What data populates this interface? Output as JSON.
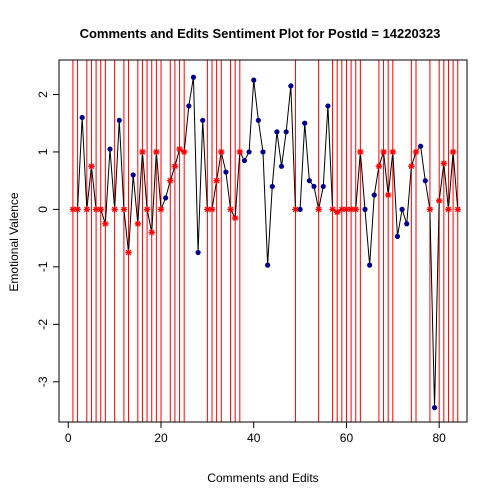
{
  "chart_data": {
    "type": "line",
    "title": "Comments and Edits Sentiment Plot for PostId =  14220323",
    "xlabel": "Comments and Edits",
    "ylabel": "Emotional Valence",
    "xlim": [
      -2,
      86
    ],
    "ylim": [
      -3.7,
      2.6
    ],
    "x_ticks": [
      0,
      20,
      40,
      60,
      80
    ],
    "x_tick_labels": [
      "0",
      "20",
      "40",
      "60",
      "80"
    ],
    "y_ticks": [
      -3,
      -2,
      -1,
      0,
      1,
      2
    ],
    "y_tick_labels": [
      "-3",
      "-2",
      "-1",
      "0",
      "1",
      "2"
    ],
    "grid": false,
    "legend": "none",
    "colors": {
      "comment_point": "#00008b",
      "edit_point": "#ff0000",
      "edit_line": "#ff0000",
      "series_line": "#000000",
      "axis": "#000000"
    },
    "series": [
      {
        "values": [
          {
            "x": 1,
            "y": 0,
            "kind": "edit"
          },
          {
            "x": 2,
            "y": 0,
            "kind": "edit"
          },
          {
            "x": 3,
            "y": 1.6,
            "kind": "comment"
          },
          {
            "x": 4,
            "y": 0,
            "kind": "edit"
          },
          {
            "x": 5,
            "y": 0.75,
            "kind": "edit"
          },
          {
            "x": 6,
            "y": 0,
            "kind": "edit"
          },
          {
            "x": 7,
            "y": 0,
            "kind": "edit"
          },
          {
            "x": 8,
            "y": -0.25,
            "kind": "edit"
          },
          {
            "x": 9,
            "y": 1.05,
            "kind": "comment"
          },
          {
            "x": 10,
            "y": 0,
            "kind": "edit"
          },
          {
            "x": 11,
            "y": 1.55,
            "kind": "comment"
          },
          {
            "x": 12,
            "y": 0,
            "kind": "edit"
          },
          {
            "x": 13,
            "y": -0.75,
            "kind": "edit"
          },
          {
            "x": 14,
            "y": 0.6,
            "kind": "comment"
          },
          {
            "x": 15,
            "y": -0.25,
            "kind": "edit"
          },
          {
            "x": 16,
            "y": 1.0,
            "kind": "edit"
          },
          {
            "x": 17,
            "y": 0,
            "kind": "edit"
          },
          {
            "x": 18,
            "y": -0.4,
            "kind": "edit"
          },
          {
            "x": 19,
            "y": 1.0,
            "kind": "edit"
          },
          {
            "x": 20,
            "y": 0,
            "kind": "edit"
          },
          {
            "x": 21,
            "y": 0.2,
            "kind": "comment"
          },
          {
            "x": 22,
            "y": 0.5,
            "kind": "edit"
          },
          {
            "x": 23,
            "y": 0.75,
            "kind": "edit"
          },
          {
            "x": 24,
            "y": 1.05,
            "kind": "edit"
          },
          {
            "x": 25,
            "y": 1.0,
            "kind": "edit"
          },
          {
            "x": 26,
            "y": 1.8,
            "kind": "comment"
          },
          {
            "x": 27,
            "y": 2.3,
            "kind": "comment"
          },
          {
            "x": 28,
            "y": -0.75,
            "kind": "comment"
          },
          {
            "x": 29,
            "y": 1.55,
            "kind": "comment"
          },
          {
            "x": 30,
            "y": 0,
            "kind": "edit"
          },
          {
            "x": 31,
            "y": 0,
            "kind": "edit"
          },
          {
            "x": 32,
            "y": 0.5,
            "kind": "edit"
          },
          {
            "x": 33,
            "y": 1.0,
            "kind": "edit"
          },
          {
            "x": 34,
            "y": 0.65,
            "kind": "comment"
          },
          {
            "x": 35,
            "y": 0,
            "kind": "edit"
          },
          {
            "x": 36,
            "y": -0.15,
            "kind": "edit"
          },
          {
            "x": 37,
            "y": 1.0,
            "kind": "edit"
          },
          {
            "x": 38,
            "y": 0.85,
            "kind": "comment"
          },
          {
            "x": 39,
            "y": 1.0,
            "kind": "comment"
          },
          {
            "x": 40,
            "y": 2.25,
            "kind": "comment"
          },
          {
            "x": 41,
            "y": 1.55,
            "kind": "comment"
          },
          {
            "x": 42,
            "y": 1.0,
            "kind": "comment"
          },
          {
            "x": 43,
            "y": -0.97,
            "kind": "comment"
          },
          {
            "x": 44,
            "y": 0.4,
            "kind": "comment"
          },
          {
            "x": 45,
            "y": 1.35,
            "kind": "comment"
          },
          {
            "x": 46,
            "y": 0.75,
            "kind": "comment"
          },
          {
            "x": 47,
            "y": 1.35,
            "kind": "comment"
          },
          {
            "x": 48,
            "y": 2.15,
            "kind": "comment"
          },
          {
            "x": 49,
            "y": 0,
            "kind": "edit"
          },
          {
            "x": 50,
            "y": 0,
            "kind": "comment"
          },
          {
            "x": 51,
            "y": 1.5,
            "kind": "comment"
          },
          {
            "x": 52,
            "y": 0.5,
            "kind": "comment"
          },
          {
            "x": 53,
            "y": 0.4,
            "kind": "comment"
          },
          {
            "x": 54,
            "y": 0,
            "kind": "edit"
          },
          {
            "x": 55,
            "y": 0.4,
            "kind": "comment"
          },
          {
            "x": 56,
            "y": 1.8,
            "kind": "comment"
          },
          {
            "x": 57,
            "y": 0,
            "kind": "edit"
          },
          {
            "x": 58,
            "y": -0.05,
            "kind": "edit"
          },
          {
            "x": 59,
            "y": 0,
            "kind": "edit"
          },
          {
            "x": 60,
            "y": 0,
            "kind": "edit"
          },
          {
            "x": 61,
            "y": 0,
            "kind": "edit"
          },
          {
            "x": 62,
            "y": 0,
            "kind": "edit"
          },
          {
            "x": 63,
            "y": 1.0,
            "kind": "edit"
          },
          {
            "x": 64,
            "y": 0,
            "kind": "comment"
          },
          {
            "x": 65,
            "y": -0.97,
            "kind": "comment"
          },
          {
            "x": 66,
            "y": 0.25,
            "kind": "comment"
          },
          {
            "x": 67,
            "y": 0.75,
            "kind": "edit"
          },
          {
            "x": 68,
            "y": 1.0,
            "kind": "edit"
          },
          {
            "x": 69,
            "y": 0.25,
            "kind": "edit"
          },
          {
            "x": 70,
            "y": 1.0,
            "kind": "edit"
          },
          {
            "x": 71,
            "y": -0.47,
            "kind": "comment"
          },
          {
            "x": 72,
            "y": 0,
            "kind": "comment"
          },
          {
            "x": 73,
            "y": -0.25,
            "kind": "comment"
          },
          {
            "x": 74,
            "y": 0.75,
            "kind": "edit"
          },
          {
            "x": 75,
            "y": 1.0,
            "kind": "edit"
          },
          {
            "x": 76,
            "y": 1.1,
            "kind": "comment"
          },
          {
            "x": 77,
            "y": 0.5,
            "kind": "comment"
          },
          {
            "x": 78,
            "y": 0,
            "kind": "edit"
          },
          {
            "x": 79,
            "y": -3.45,
            "kind": "comment"
          },
          {
            "x": 80,
            "y": 0.15,
            "kind": "edit"
          },
          {
            "x": 81,
            "y": 0.8,
            "kind": "edit"
          },
          {
            "x": 82,
            "y": 0,
            "kind": "edit"
          },
          {
            "x": 83,
            "y": 1.0,
            "kind": "edit"
          },
          {
            "x": 84,
            "y": 0,
            "kind": "edit"
          }
        ]
      }
    ],
    "edit_lines_x": [
      1,
      2,
      4,
      5,
      6,
      7,
      8,
      10,
      12,
      13,
      15,
      16,
      17,
      18,
      19,
      20,
      22,
      23,
      24,
      25,
      30,
      31,
      32,
      33,
      35,
      36,
      37,
      49,
      54,
      57,
      58,
      59,
      60,
      61,
      62,
      63,
      67,
      68,
      69,
      70,
      74,
      75,
      78,
      80,
      81,
      82,
      83,
      84
    ]
  }
}
